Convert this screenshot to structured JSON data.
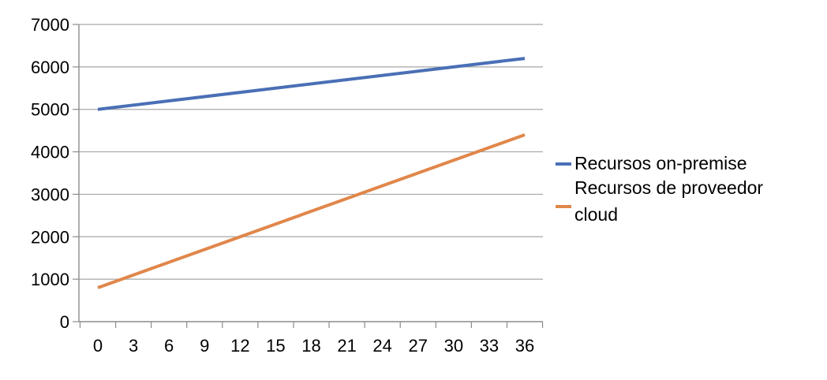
{
  "chart_data": {
    "type": "line",
    "title": "",
    "xlabel": "",
    "ylabel": "",
    "x": [
      0,
      36
    ],
    "xticks": [
      0,
      3,
      6,
      9,
      12,
      15,
      18,
      21,
      24,
      27,
      30,
      33,
      36
    ],
    "yticks": [
      0,
      1000,
      2000,
      3000,
      4000,
      5000,
      6000,
      7000
    ],
    "ylim": [
      0,
      7000
    ],
    "grid": "horizontal",
    "legend_position": "right",
    "series": [
      {
        "name": "Recursos on-premise",
        "color": "#4a6fb5",
        "values": [
          5000,
          6200
        ]
      },
      {
        "name": "Recursos de proveedor cloud",
        "color": "#e0874a",
        "values": [
          800,
          4400
        ]
      }
    ]
  },
  "legend": {
    "items": [
      {
        "lines": [
          "Recursos on-premise"
        ],
        "color": "#4a6fb5"
      },
      {
        "lines": [
          "Recursos de proveedor",
          "cloud"
        ],
        "color": "#e0874a"
      }
    ]
  }
}
